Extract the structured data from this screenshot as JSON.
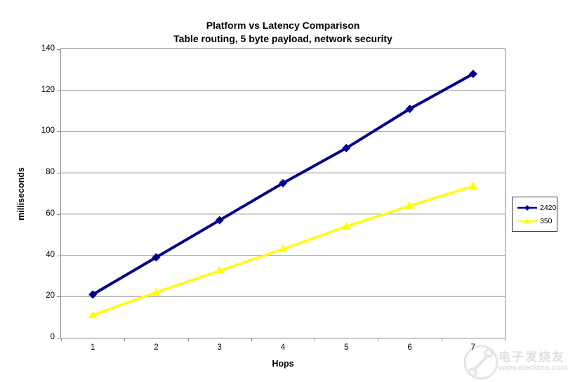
{
  "chart_data": {
    "type": "line",
    "title": "Platform vs Latency Comparison",
    "subtitle": "Table routing, 5 byte payload, network security",
    "xlabel": "Hops",
    "ylabel": "milliseconds",
    "categories": [
      "1",
      "2",
      "3",
      "4",
      "5",
      "6",
      "7"
    ],
    "series": [
      {
        "name": "2420",
        "color": "#00008B",
        "marker": "diamond",
        "values": [
          21,
          39,
          57,
          75,
          92,
          111,
          128
        ]
      },
      {
        "name": "350",
        "color": "#FFFF00",
        "marker": "triangle",
        "values": [
          11,
          22,
          32.5,
          43,
          54,
          64,
          73.5
        ]
      }
    ],
    "ylim": [
      0,
      140
    ],
    "ytick_step": 20,
    "grid": true,
    "legend_position": "right"
  },
  "watermark": {
    "brand": "电子发烧友",
    "url": "www.elecfans.com",
    "color": "#e2dfdf"
  },
  "colors": {
    "grid": "#999999",
    "axis": "#8c8c8c",
    "text": "#000000",
    "legend_border": "#3a3a3a"
  }
}
